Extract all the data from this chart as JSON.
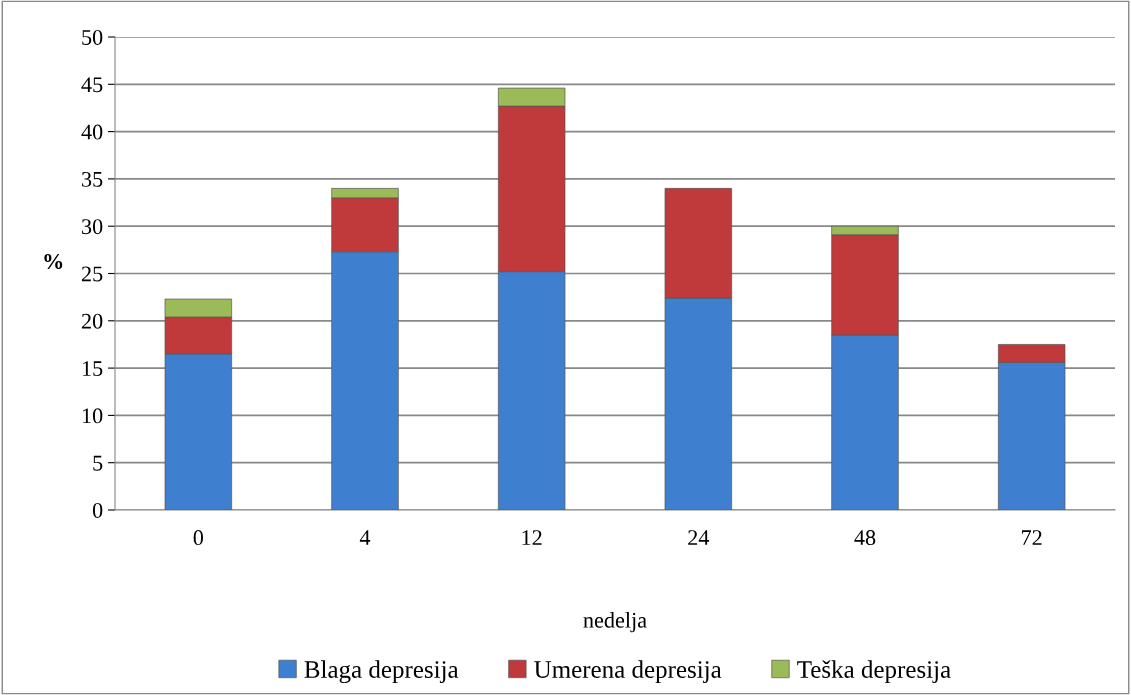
{
  "chart_data": {
    "type": "bar",
    "stacked": true,
    "xlabel": "nedelja",
    "ylabel": "%",
    "categories": [
      "0",
      "4",
      "12",
      "24",
      "48",
      "72"
    ],
    "series": [
      {
        "name": "Blaga depresija",
        "color": "#3f7fd0",
        "values": [
          16.5,
          27.3,
          25.2,
          22.4,
          18.5,
          15.6
        ]
      },
      {
        "name": "Umerena depresija",
        "color": "#c0393b",
        "values": [
          3.9,
          5.7,
          17.5,
          11.6,
          10.6,
          1.9
        ]
      },
      {
        "name": "Teška depresija",
        "color": "#9bbb59",
        "values": [
          1.9,
          1.0,
          1.9,
          null,
          0.9,
          null
        ]
      }
    ],
    "ylim": [
      0,
      50
    ],
    "yticks": [
      0,
      5,
      10,
      15,
      20,
      25,
      30,
      35,
      40,
      45,
      50
    ],
    "grid": "y",
    "legend": "bottom"
  }
}
